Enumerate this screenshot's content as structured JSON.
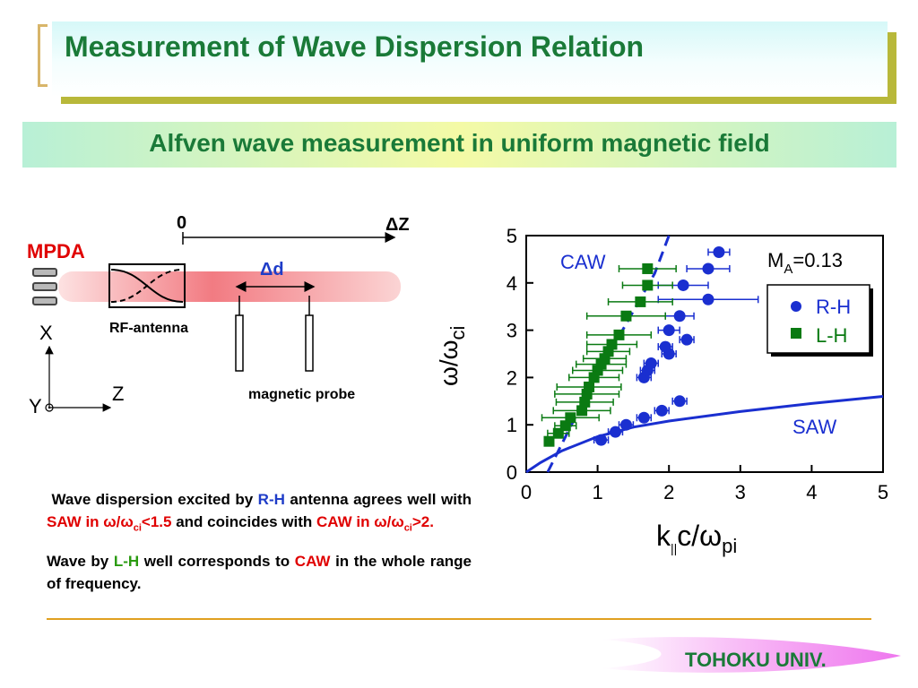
{
  "title": "Measurement of Wave Dispersion Relation",
  "subtitle": "Alfven wave measurement in uniform magnetic field",
  "footer": "TOHOKU UNIV.",
  "diagram": {
    "mpda_label": "MPDA",
    "zero_label": "0",
    "delta_z_label": "ΔZ",
    "delta_d_label": "Δd",
    "rf_antenna_label": "RF-antenna",
    "probe_label": "magnetic probe",
    "axis_x_label": "X",
    "axis_y_label": "Y",
    "axis_z_label": "Z"
  },
  "description": {
    "p1_a": "Wave dispersion excited by ",
    "p1_rh": "R-H",
    "p1_b": " antenna agrees well with ",
    "p1_saw": "SAW in ",
    "p1_saw_cond": "ω/ω",
    "p1_saw_sub": "ci",
    "p1_saw_val": "<1.5",
    "p1_c": " and coincides with ",
    "p1_caw": "CAW in ",
    "p1_caw_cond": "ω/ω",
    "p1_caw_sub": "ci",
    "p1_caw_val": ">2.",
    "p2_a": "Wave by ",
    "p2_lh": "L-H",
    "p2_b": " well corresponds to ",
    "p2_caw": "CAW",
    "p2_c": " in the whole range of frequency."
  },
  "chart_data": {
    "type": "scatter",
    "xlabel_main": "k",
    "xlabel_sub1": "||",
    "xlabel_mid": "c/ω",
    "xlabel_sub2": "pi",
    "ylabel_main": "ω/ω",
    "ylabel_sub": "ci",
    "xlim": [
      0,
      5
    ],
    "ylim": [
      0,
      5
    ],
    "x_ticks": [
      "0",
      "1",
      "2",
      "3",
      "4",
      "5"
    ],
    "y_ticks": [
      "0",
      "1",
      "2",
      "3",
      "4",
      "5"
    ],
    "legend_position": "top-right",
    "annotation_ma_main": "M",
    "annotation_ma_sub": "A",
    "annotation_ma_val": "=0.13",
    "curve_labels": {
      "caw": "CAW",
      "saw": "SAW"
    },
    "colors": {
      "rh": "#1a2fd0",
      "lh": "#0a7a12",
      "curve": "#1a2fd0"
    },
    "series": [
      {
        "name": "R-H",
        "marker": "circle",
        "points": [
          {
            "x": 1.05,
            "y": 0.68,
            "xerr": [
              0.1,
              0.1
            ]
          },
          {
            "x": 1.25,
            "y": 0.85,
            "xerr": [
              0.1,
              0.1
            ]
          },
          {
            "x": 1.4,
            "y": 1.0,
            "xerr": [
              0.1,
              0.1
            ]
          },
          {
            "x": 1.65,
            "y": 1.15,
            "xerr": [
              0.1,
              0.1
            ]
          },
          {
            "x": 1.9,
            "y": 1.3,
            "xerr": [
              0.1,
              0.1
            ]
          },
          {
            "x": 2.15,
            "y": 1.5,
            "xerr": [
              0.1,
              0.1
            ]
          },
          {
            "x": 1.65,
            "y": 2.0,
            "xerr": [
              0.1,
              0.1
            ]
          },
          {
            "x": 1.7,
            "y": 2.15,
            "xerr": [
              0.1,
              0.1
            ]
          },
          {
            "x": 1.75,
            "y": 2.3,
            "xerr": [
              0.1,
              0.1
            ]
          },
          {
            "x": 2.0,
            "y": 2.5,
            "xerr": [
              0.1,
              0.1
            ]
          },
          {
            "x": 1.95,
            "y": 2.65,
            "xerr": [
              0.1,
              0.1
            ]
          },
          {
            "x": 2.25,
            "y": 2.8,
            "xerr": [
              0.1,
              0.1
            ]
          },
          {
            "x": 2.0,
            "y": 3.0,
            "xerr": [
              0.15,
              0.15
            ]
          },
          {
            "x": 2.15,
            "y": 3.3,
            "xerr": [
              0.2,
              0.2
            ]
          },
          {
            "x": 2.55,
            "y": 3.65,
            "xerr": [
              0.7,
              0.7
            ]
          },
          {
            "x": 2.2,
            "y": 3.95,
            "xerr": [
              0.35,
              0.35
            ]
          },
          {
            "x": 2.55,
            "y": 4.3,
            "xerr": [
              0.3,
              0.3
            ]
          },
          {
            "x": 2.7,
            "y": 4.65,
            "xerr": [
              0.15,
              0.15
            ]
          }
        ]
      },
      {
        "name": "L-H",
        "marker": "square",
        "points": [
          {
            "x": 0.32,
            "y": 0.65,
            "xerr": [
              0.05,
              0.05
            ]
          },
          {
            "x": 0.45,
            "y": 0.82,
            "xerr": [
              0.15,
              0.15
            ]
          },
          {
            "x": 0.55,
            "y": 0.98,
            "xerr": [
              0.15,
              0.15
            ]
          },
          {
            "x": 0.62,
            "y": 1.15,
            "xerr": [
              0.4,
              0.4
            ]
          },
          {
            "x": 0.78,
            "y": 1.3,
            "xerr": [
              0.4,
              0.4
            ]
          },
          {
            "x": 0.82,
            "y": 1.48,
            "xerr": [
              0.4,
              0.4
            ]
          },
          {
            "x": 0.85,
            "y": 1.65,
            "xerr": [
              0.45,
              0.45
            ]
          },
          {
            "x": 0.88,
            "y": 1.8,
            "xerr": [
              0.45,
              0.45
            ]
          },
          {
            "x": 0.95,
            "y": 2.0,
            "xerr": [
              0.35,
              0.35
            ]
          },
          {
            "x": 1.0,
            "y": 2.15,
            "xerr": [
              0.35,
              0.35
            ]
          },
          {
            "x": 1.05,
            "y": 2.28,
            "xerr": [
              0.35,
              0.35
            ]
          },
          {
            "x": 1.1,
            "y": 2.4,
            "xerr": [
              0.3,
              0.3
            ]
          },
          {
            "x": 1.15,
            "y": 2.55,
            "xerr": [
              0.3,
              0.3
            ]
          },
          {
            "x": 1.2,
            "y": 2.7,
            "xerr": [
              0.35,
              0.35
            ]
          },
          {
            "x": 1.3,
            "y": 2.9,
            "xerr": [
              0.45,
              0.45
            ]
          },
          {
            "x": 1.4,
            "y": 3.3,
            "xerr": [
              0.55,
              0.55
            ]
          },
          {
            "x": 1.6,
            "y": 3.6,
            "xerr": [
              0.45,
              0.45
            ]
          },
          {
            "x": 1.7,
            "y": 3.95,
            "xerr": [
              0.35,
              0.35
            ]
          },
          {
            "x": 1.7,
            "y": 4.3,
            "xerr": [
              0.4,
              0.4
            ]
          }
        ]
      },
      {
        "name": "CAW",
        "type": "line",
        "dash": true,
        "points": [
          [
            0.3,
            0.0
          ],
          [
            0.6,
            0.9
          ],
          [
            0.9,
            1.8
          ],
          [
            1.2,
            2.6
          ],
          [
            1.5,
            3.4
          ],
          [
            1.8,
            4.2
          ],
          [
            2.0,
            5.0
          ]
        ]
      },
      {
        "name": "SAW",
        "type": "line",
        "dash": false,
        "points": [
          [
            0.0,
            0.0
          ],
          [
            0.2,
            0.2
          ],
          [
            0.5,
            0.45
          ],
          [
            1.0,
            0.75
          ],
          [
            1.5,
            0.95
          ],
          [
            2.0,
            1.08
          ],
          [
            3.0,
            1.28
          ],
          [
            4.0,
            1.45
          ],
          [
            5.0,
            1.6
          ]
        ]
      }
    ]
  }
}
